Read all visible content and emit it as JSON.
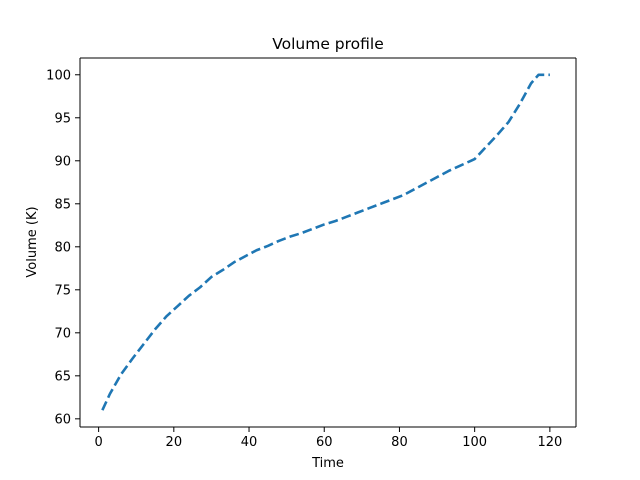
{
  "chart_data": {
    "type": "line",
    "title": "Volume profile",
    "xlabel": "Time",
    "ylabel": "Volume (K)",
    "xlim": [
      -4.95,
      126.95
    ],
    "ylim": [
      59.05,
      101.95
    ],
    "xticks": [
      0,
      20,
      40,
      60,
      80,
      100,
      120
    ],
    "yticks": [
      60,
      65,
      70,
      75,
      80,
      85,
      90,
      95,
      100
    ],
    "grid": false,
    "legend": "none",
    "series": [
      {
        "color": "#1f77b4",
        "line_style": "dashed",
        "x": [
          1,
          3,
          6,
          9,
          12,
          15,
          18,
          21,
          24,
          27,
          30,
          33,
          36,
          39,
          42,
          45,
          48,
          51,
          54,
          57,
          60,
          63,
          66,
          69,
          72,
          75,
          78,
          81,
          84,
          87,
          90,
          93,
          96,
          99,
          100,
          103,
          106,
          109,
          112,
          115,
          117,
          118,
          120
        ],
        "y": [
          61.0,
          62.9,
          65.2,
          67.0,
          68.7,
          70.4,
          71.9,
          73.1,
          74.3,
          75.3,
          76.5,
          77.3,
          78.2,
          78.9,
          79.6,
          80.1,
          80.7,
          81.2,
          81.6,
          82.1,
          82.6,
          83.0,
          83.5,
          84.0,
          84.5,
          85.0,
          85.5,
          86.0,
          86.7,
          87.4,
          88.1,
          88.8,
          89.4,
          90.0,
          90.2,
          91.6,
          93.0,
          94.5,
          96.6,
          99.0,
          100.0,
          100.0,
          100.0
        ]
      }
    ]
  }
}
